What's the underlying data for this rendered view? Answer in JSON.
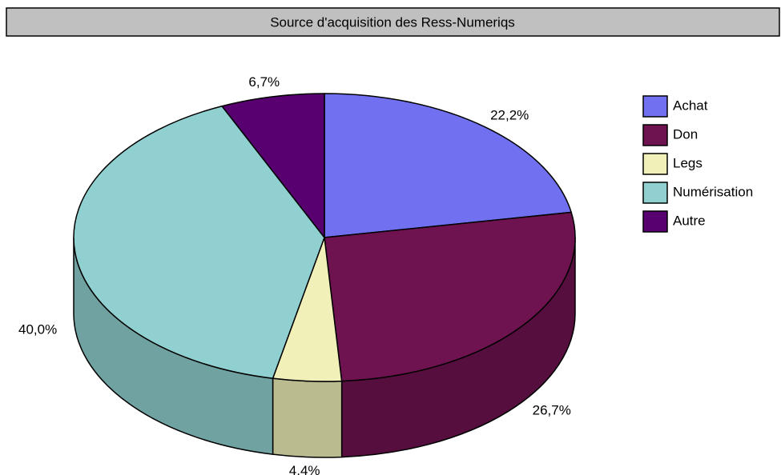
{
  "chart_data": {
    "type": "pie",
    "title": "Source d'acquisition des Ress-Numeriqs",
    "categories": [
      "Achat",
      "Don",
      "Legs",
      "Numérisation",
      "Autre"
    ],
    "values": [
      22.2,
      26.7,
      4.4,
      40.0,
      6.7
    ],
    "value_labels": [
      "22,2%",
      "26,7%",
      "4,4%",
      "40,0%",
      "6,7%"
    ],
    "colors": [
      "#7070f0",
      "#6e1250",
      "#f0f0b8",
      "#90d0d0",
      "#580070"
    ],
    "legend": "right"
  }
}
